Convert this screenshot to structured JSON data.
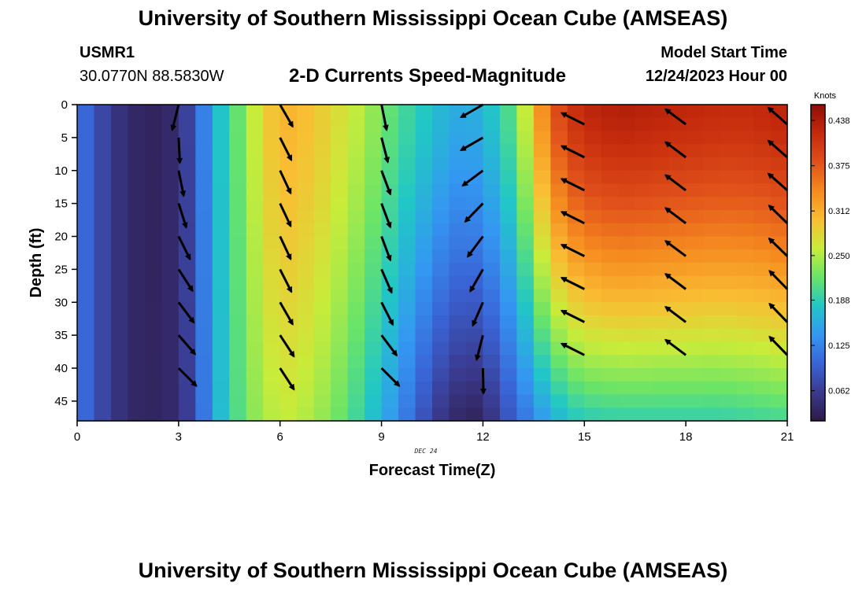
{
  "header": {
    "title": "University of Southern Mississippi Ocean Cube (AMSEAS)",
    "station": "USMR1",
    "coords": "30.0770N  88.5830W",
    "plot_title": "2-D Currents Speed-Magnitude",
    "model_start_label": "Model Start Time",
    "model_start_value": "12/24/2023 Hour 00"
  },
  "footer": {
    "title": "University of Southern Mississippi Ocean Cube (AMSEAS)"
  },
  "chart_data": {
    "type": "heatmap",
    "title": "2-D Currents Speed-Magnitude",
    "xlabel": "Forecast Time(Z)",
    "ylabel": "Depth (ft)",
    "x_date_label": "DEC 24",
    "xlim": [
      0,
      21
    ],
    "ylim": [
      0,
      48
    ],
    "y_inverted": true,
    "x_ticks": [
      0,
      3,
      6,
      9,
      12,
      15,
      18,
      21
    ],
    "y_ticks": [
      0,
      5,
      10,
      15,
      20,
      25,
      30,
      35,
      40,
      45
    ],
    "colorbar": {
      "label": "Knots",
      "tick_labels": [
        "0.062",
        "0.125",
        "0.188",
        "0.250",
        "0.312",
        "0.375",
        "0.438"
      ],
      "range": [
        0.02,
        0.46
      ],
      "colors": [
        "#2e1a47",
        "#3a3a8e",
        "#3a64d6",
        "#3497f2",
        "#21c7c6",
        "#6ae468",
        "#c8ec3a",
        "#f9be33",
        "#f58a1f",
        "#e0501a",
        "#c42a0c",
        "#8f0e07"
      ]
    },
    "speed_profile": [
      {
        "hour": 0,
        "top": 0.12,
        "bottom": 0.12
      },
      {
        "hour": 0.5,
        "top": 0.085,
        "bottom": 0.085
      },
      {
        "hour": 1,
        "top": 0.06,
        "bottom": 0.06
      },
      {
        "hour": 1.5,
        "top": 0.04,
        "bottom": 0.04
      },
      {
        "hour": 2,
        "top": 0.035,
        "bottom": 0.035
      },
      {
        "hour": 2.5,
        "top": 0.03,
        "bottom": 0.035
      },
      {
        "hour": 3,
        "top": 0.05,
        "bottom": 0.045
      },
      {
        "hour": 3.5,
        "top": 0.085,
        "bottom": 0.08
      },
      {
        "hour": 4,
        "top": 0.16,
        "bottom": 0.15
      },
      {
        "hour": 4.5,
        "top": 0.195,
        "bottom": 0.19
      },
      {
        "hour": 5,
        "top": 0.24,
        "bottom": 0.225
      },
      {
        "hour": 5.5,
        "top": 0.28,
        "bottom": 0.245
      },
      {
        "hour": 6,
        "top": 0.31,
        "bottom": 0.26
      },
      {
        "hour": 6.5,
        "top": 0.305,
        "bottom": 0.255
      },
      {
        "hour": 7,
        "top": 0.295,
        "bottom": 0.245
      },
      {
        "hour": 7.5,
        "top": 0.28,
        "bottom": 0.23
      },
      {
        "hour": 8,
        "top": 0.265,
        "bottom": 0.21
      },
      {
        "hour": 8.5,
        "top": 0.25,
        "bottom": 0.185
      },
      {
        "hour": 9,
        "top": 0.225,
        "bottom": 0.16
      },
      {
        "hour": 9.5,
        "top": 0.205,
        "bottom": 0.13
      },
      {
        "hour": 10,
        "top": 0.19,
        "bottom": 0.1
      },
      {
        "hour": 10.5,
        "top": 0.175,
        "bottom": 0.065
      },
      {
        "hour": 11,
        "top": 0.16,
        "bottom": 0.045
      },
      {
        "hour": 11.5,
        "top": 0.155,
        "bottom": 0.03
      },
      {
        "hour": 12,
        "top": 0.165,
        "bottom": 0.035
      },
      {
        "hour": 12.5,
        "top": 0.19,
        "bottom": 0.07
      },
      {
        "hour": 13,
        "top": 0.22,
        "bottom": 0.1
      },
      {
        "hour": 13.5,
        "top": 0.3,
        "bottom": 0.13
      },
      {
        "hour": 14,
        "top": 0.37,
        "bottom": 0.155
      },
      {
        "hour": 14.5,
        "top": 0.405,
        "bottom": 0.175
      },
      {
        "hour": 15,
        "top": 0.425,
        "bottom": 0.185
      },
      {
        "hour": 16,
        "top": 0.435,
        "bottom": 0.19
      },
      {
        "hour": 17,
        "top": 0.43,
        "bottom": 0.19
      },
      {
        "hour": 18,
        "top": 0.425,
        "bottom": 0.19
      },
      {
        "hour": 19,
        "top": 0.42,
        "bottom": 0.19
      },
      {
        "hour": 20,
        "top": 0.42,
        "bottom": 0.195
      },
      {
        "hour": 21,
        "top": 0.43,
        "bottom": 0.2
      }
    ],
    "vectors": [
      {
        "hour": 3,
        "depths": [
          0,
          5,
          10,
          15,
          20,
          25,
          30,
          35,
          40
        ],
        "dx": [
          -0.25,
          0.05,
          0.2,
          0.3,
          0.45,
          0.55,
          0.6,
          0.65,
          0.7
        ],
        "dy": [
          1,
          1,
          1,
          0.95,
          0.9,
          0.85,
          0.8,
          0.75,
          0.7
        ]
      },
      {
        "hour": 6,
        "depths": [
          0,
          5,
          10,
          15,
          20,
          25,
          30,
          35,
          40
        ],
        "dx": [
          0.5,
          0.45,
          0.42,
          0.42,
          0.42,
          0.45,
          0.5,
          0.55,
          0.55
        ],
        "dy": [
          0.87,
          0.89,
          0.9,
          0.9,
          0.9,
          0.89,
          0.87,
          0.84,
          0.84
        ]
      },
      {
        "hour": 9,
        "depths": [
          0,
          5,
          10,
          15,
          20,
          25,
          30,
          35,
          40
        ],
        "dx": [
          0.2,
          0.25,
          0.35,
          0.35,
          0.35,
          0.4,
          0.45,
          0.6,
          0.7
        ],
        "dy": [
          1,
          0.97,
          0.94,
          0.94,
          0.94,
          0.92,
          0.89,
          0.8,
          0.7
        ]
      },
      {
        "hour": 12,
        "depths": [
          0,
          5,
          10,
          15,
          20,
          25,
          30,
          35,
          40
        ],
        "dx": [
          -0.87,
          -0.87,
          -0.8,
          -0.7,
          -0.6,
          -0.5,
          -0.4,
          -0.25,
          0.02
        ],
        "dy": [
          0.5,
          0.5,
          0.6,
          0.72,
          0.8,
          0.87,
          0.92,
          0.97,
          1
        ]
      },
      {
        "hour": 15,
        "depths": [
          3,
          8,
          13,
          18,
          23,
          28,
          33,
          38
        ],
        "dx": [
          -0.9,
          -0.9,
          -0.9,
          -0.9,
          -0.9,
          -0.9,
          -0.9,
          -0.9
        ],
        "dy": [
          -0.45,
          -0.45,
          -0.45,
          -0.45,
          -0.45,
          -0.45,
          -0.45,
          -0.45
        ]
      },
      {
        "hour": 18,
        "depths": [
          3,
          8,
          13,
          18,
          23,
          28,
          33,
          38
        ],
        "dx": [
          -0.8,
          -0.8,
          -0.8,
          -0.8,
          -0.8,
          -0.8,
          -0.8,
          -0.8
        ],
        "dy": [
          -0.6,
          -0.6,
          -0.6,
          -0.6,
          -0.6,
          -0.6,
          -0.6,
          -0.6
        ]
      },
      {
        "hour": 21,
        "depths": [
          3,
          8,
          13,
          18,
          23,
          28,
          33,
          38
        ],
        "dx": [
          -0.75,
          -0.75,
          -0.75,
          -0.72,
          -0.72,
          -0.7,
          -0.7,
          -0.7
        ],
        "dy": [
          -0.66,
          -0.66,
          -0.66,
          -0.7,
          -0.7,
          -0.72,
          -0.72,
          -0.72
        ]
      }
    ]
  }
}
